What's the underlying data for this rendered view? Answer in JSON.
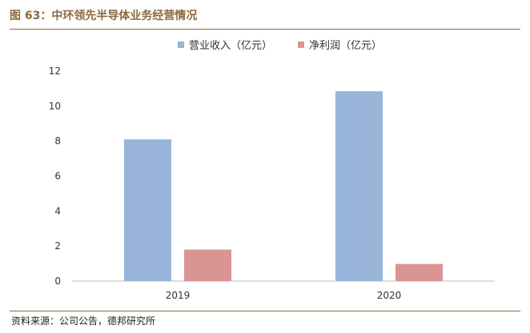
{
  "figure": {
    "title": "图 63：中环领先半导体业务经营情况",
    "source": "资料来源：公司公告，德邦研究所"
  },
  "chart_data": {
    "type": "bar",
    "categories": [
      "2019",
      "2020"
    ],
    "series": [
      {
        "name": "营业收入（亿元）",
        "color": "#98B5D9",
        "values": [
          8.1,
          10.85
        ]
      },
      {
        "name": "净利润（亿元）",
        "color": "#D99594",
        "values": [
          1.8,
          0.98
        ]
      }
    ],
    "ylim": [
      0,
      12
    ],
    "yticks": [
      "0",
      "2",
      "4",
      "6",
      "8",
      "10",
      "12"
    ],
    "grid": false,
    "legend": "top-center"
  }
}
